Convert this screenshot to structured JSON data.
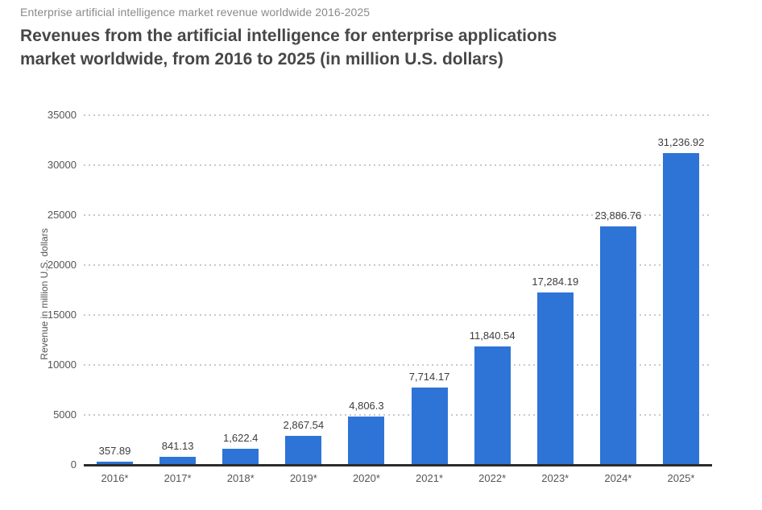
{
  "page": {
    "eyebrow": "Enterprise artificial intelligence market revenue worldwide 2016-2025",
    "title_lines": [
      "Revenues from the artificial intelligence for enterprise applications",
      "market worldwide, from 2016 to 2025 (in million U.S. dollars)"
    ]
  },
  "colors": {
    "bar": "#2e74d6",
    "axis_line": "#2b2b2b",
    "gridline": "#c9c9c9",
    "title_text": "#474747",
    "eyebrow_text": "#8a8a8a",
    "tick_text": "#555555",
    "value_label_text": "#3d3d3d"
  },
  "chart_data": {
    "type": "bar",
    "title": "Revenues from the artificial intelligence for enterprise applications market worldwide, from 2016 to 2025 (in million U.S. dollars)",
    "subtitle": "Enterprise artificial intelligence market revenue worldwide 2016-2025",
    "categories": [
      "2016*",
      "2017*",
      "2018*",
      "2019*",
      "2020*",
      "2021*",
      "2022*",
      "2023*",
      "2024*",
      "2025*"
    ],
    "values": [
      357.89,
      841.13,
      1622.4,
      2867.54,
      4806.3,
      7714.17,
      11840.54,
      17284.19,
      23886.76,
      31236.92
    ],
    "value_labels": [
      "357.89",
      "841.13",
      "1,622.4",
      "2,867.54",
      "4,806.3",
      "7,714.17",
      "11,840.54",
      "17,284.19",
      "23,886.76",
      "31,236.92"
    ],
    "xlabel": "",
    "ylabel": "Revenue in million U.S. dollars",
    "ylim": [
      0,
      35000
    ],
    "yticks": [
      0,
      5000,
      10000,
      15000,
      20000,
      25000,
      30000,
      35000
    ],
    "grid": "horizontal-dotted",
    "legend": "none",
    "bar_color": "#2e74d6"
  }
}
